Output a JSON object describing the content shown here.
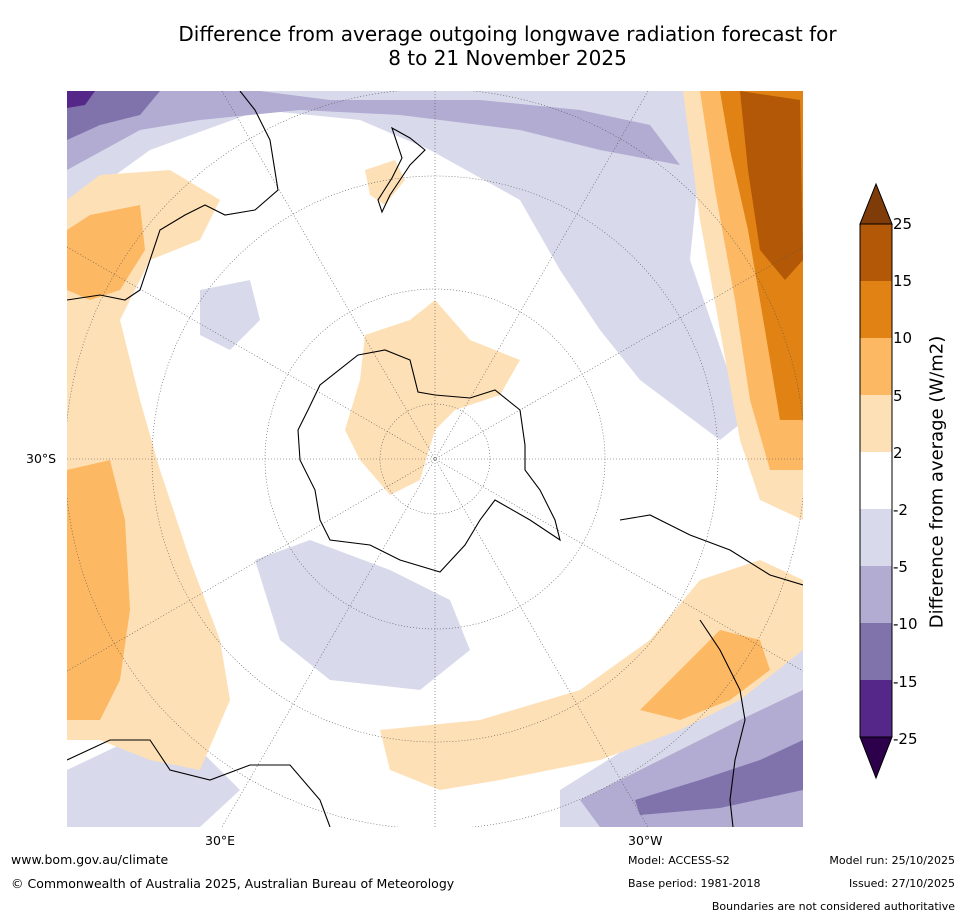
{
  "title": {
    "line1": "Difference from average outgoing longwave radiation forecast for",
    "line2": "8 to 21 November 2025"
  },
  "map": {
    "projection": "south-polar-stereographic",
    "labels": {
      "left_lat": "30°S",
      "bottom_left_lon": "30°E",
      "bottom_right_lon": "30°W"
    }
  },
  "colorbar": {
    "title": "Difference from average (W/m2)",
    "ticks": [
      "25",
      "15",
      "10",
      "5",
      "2",
      "-2",
      "-5",
      "-10",
      "-15",
      "-25"
    ],
    "colors": {
      "extend_high": "#7f3b08",
      "b15_25": "#b35806",
      "b10_15": "#e08214",
      "b5_10": "#fdb863",
      "b2_5": "#fee0b6",
      "bm2_2": "#ffffff",
      "bm5_m2": "#d8daeb",
      "bm10_m5": "#b2abd2",
      "bm15_m10": "#8073ac",
      "bm25_m15": "#542788",
      "extend_low": "#2d004b"
    }
  },
  "footer": {
    "website": "www.bom.gov.au/climate",
    "copyright": "© Commonwealth of Australia 2025, Australian Bureau of Meteorology",
    "model": "Model: ACCESS-S2",
    "base_period": "Base period: 1981-2018",
    "model_run": "Model run: 25/10/2025",
    "issued": "Issued: 27/10/2025",
    "disclaimer": "Boundaries are not considered authoritative"
  }
}
